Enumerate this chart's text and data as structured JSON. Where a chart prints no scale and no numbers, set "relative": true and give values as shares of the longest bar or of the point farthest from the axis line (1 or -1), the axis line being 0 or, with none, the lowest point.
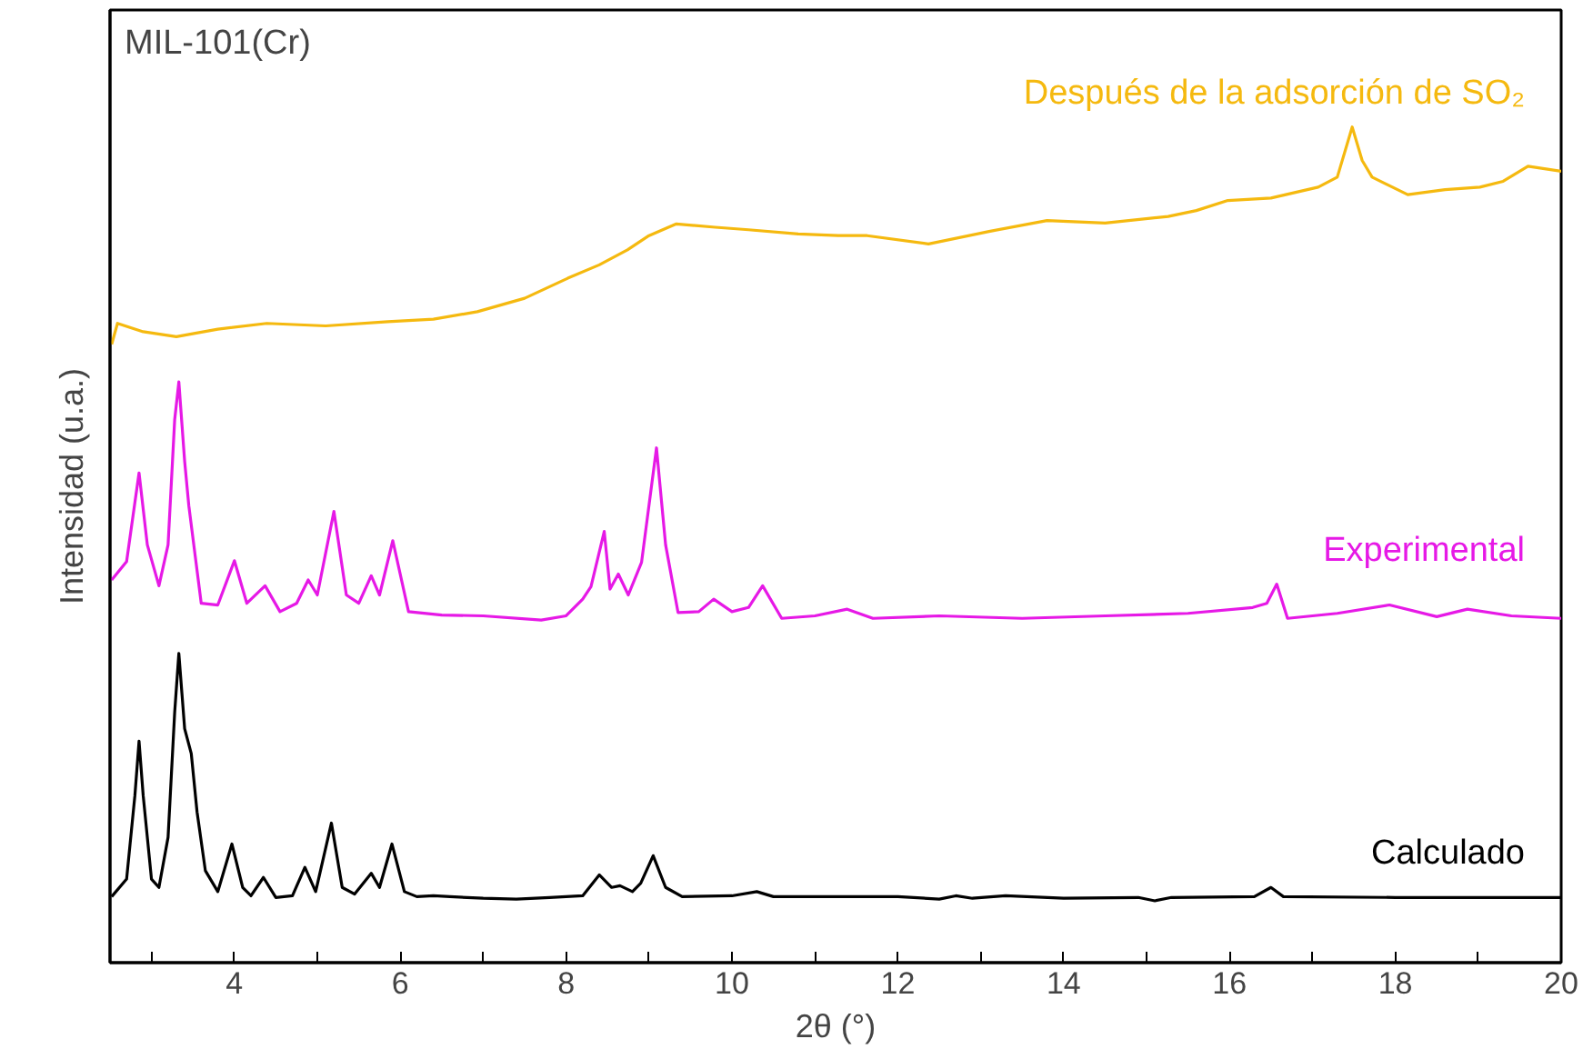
{
  "chart_data": {
    "type": "line",
    "relative": true,
    "xlabel": "2θ (°)",
    "ylabel": "Intensidad (u.a.)",
    "annotations": [
      "MIL-101(Cr)"
    ],
    "xlim": [
      2.5,
      20
    ],
    "xticks": [
      {
        "value": 3,
        "label": null
      },
      4,
      {
        "value": 5,
        "label": null
      },
      6,
      {
        "value": 7,
        "label": null
      },
      8,
      {
        "value": 9,
        "label": null
      },
      10,
      {
        "value": 11,
        "label": null
      },
      12,
      {
        "value": 13,
        "label": null
      },
      14,
      {
        "value": 15,
        "label": null
      },
      16,
      {
        "value": 17,
        "label": null
      },
      18,
      {
        "value": 19,
        "label": null
      },
      20
    ],
    "grid": false,
    "tick_labels": "x",
    "series": [
      {
        "name": "Calculado",
        "color": "#000000",
        "x": [
          2.52,
          2.7,
          2.8,
          2.85,
          2.9,
          3.0,
          3.09,
          3.2,
          3.28,
          3.33,
          3.4,
          3.48,
          3.55,
          3.65,
          3.8,
          3.97,
          4.1,
          4.2,
          4.35,
          4.5,
          4.7,
          4.85,
          4.98,
          5.17,
          5.3,
          5.45,
          5.65,
          5.75,
          5.9,
          6.05,
          6.2,
          6.4,
          6.6,
          7.0,
          7.4,
          7.8,
          8.2,
          8.4,
          8.55,
          8.65,
          8.8,
          8.9,
          9.05,
          9.2,
          9.4,
          10.0,
          10.3,
          10.5,
          12.0,
          12.5,
          12.7,
          12.9,
          13.3,
          14.0,
          14.9,
          15.1,
          15.3,
          16.3,
          16.5,
          16.65,
          18.0,
          20.0
        ],
        "values": [
          0.079,
          0.1,
          0.2,
          0.265,
          0.2,
          0.1,
          0.09,
          0.15,
          0.3,
          0.37,
          0.28,
          0.25,
          0.18,
          0.11,
          0.085,
          0.142,
          0.09,
          0.08,
          0.102,
          0.078,
          0.08,
          0.114,
          0.085,
          0.167,
          0.09,
          0.082,
          0.107,
          0.09,
          0.142,
          0.085,
          0.079,
          0.08,
          0.079,
          0.077,
          0.076,
          0.078,
          0.08,
          0.105,
          0.09,
          0.092,
          0.085,
          0.095,
          0.128,
          0.09,
          0.079,
          0.08,
          0.085,
          0.079,
          0.079,
          0.076,
          0.08,
          0.077,
          0.08,
          0.077,
          0.078,
          0.074,
          0.078,
          0.079,
          0.09,
          0.079,
          0.078,
          0.078
        ]
      },
      {
        "name": "Experimental",
        "color": "#e619e6",
        "x": [
          2.52,
          2.7,
          2.85,
          2.95,
          3.09,
          3.2,
          3.28,
          3.33,
          3.4,
          3.45,
          3.6,
          3.8,
          4.0,
          4.15,
          4.37,
          4.55,
          4.75,
          4.89,
          5.0,
          5.2,
          5.35,
          5.5,
          5.65,
          5.75,
          5.91,
          6.1,
          6.5,
          7.0,
          7.7,
          8.0,
          8.2,
          8.3,
          8.46,
          8.53,
          8.63,
          8.75,
          8.91,
          9.09,
          9.2,
          9.35,
          9.6,
          9.78,
          10.0,
          10.2,
          10.37,
          10.6,
          11.0,
          11.39,
          11.7,
          12.5,
          13.5,
          14.5,
          15.5,
          16.28,
          16.45,
          16.57,
          16.7,
          17.3,
          17.93,
          18.5,
          18.87,
          19.4,
          20.0
        ],
        "values": [
          0.458,
          0.48,
          0.586,
          0.5,
          0.451,
          0.5,
          0.65,
          0.695,
          0.6,
          0.547,
          0.43,
          0.428,
          0.481,
          0.43,
          0.451,
          0.42,
          0.43,
          0.458,
          0.44,
          0.54,
          0.44,
          0.43,
          0.463,
          0.44,
          0.505,
          0.42,
          0.416,
          0.415,
          0.41,
          0.415,
          0.435,
          0.45,
          0.516,
          0.447,
          0.465,
          0.44,
          0.479,
          0.616,
          0.5,
          0.419,
          0.42,
          0.435,
          0.42,
          0.425,
          0.451,
          0.412,
          0.415,
          0.423,
          0.412,
          0.415,
          0.412,
          0.415,
          0.418,
          0.425,
          0.43,
          0.453,
          0.412,
          0.418,
          0.428,
          0.414,
          0.423,
          0.415,
          0.412
        ]
      },
      {
        "name": "Después de la adsorción de SO₂",
        "color": "#f5b90f",
        "x": [
          2.52,
          2.59,
          2.9,
          3.3,
          3.8,
          4.39,
          5.1,
          5.85,
          6.4,
          6.93,
          7.5,
          8.02,
          8.4,
          8.74,
          9.0,
          9.33,
          9.8,
          10.2,
          10.8,
          11.28,
          11.63,
          12.37,
          13.1,
          13.8,
          14.5,
          15.26,
          15.6,
          15.98,
          16.5,
          17.07,
          17.3,
          17.48,
          17.6,
          17.72,
          18.15,
          18.6,
          19.02,
          19.3,
          19.6,
          20.0
        ],
        "values": [
          0.74,
          0.765,
          0.755,
          0.749,
          0.758,
          0.765,
          0.762,
          0.767,
          0.77,
          0.779,
          0.795,
          0.819,
          0.835,
          0.853,
          0.87,
          0.884,
          0.88,
          0.877,
          0.872,
          0.87,
          0.87,
          0.86,
          0.875,
          0.888,
          0.885,
          0.893,
          0.9,
          0.912,
          0.915,
          0.928,
          0.94,
          1.0,
          0.96,
          0.94,
          0.919,
          0.925,
          0.928,
          0.935,
          0.953,
          0.947
        ]
      }
    ]
  }
}
